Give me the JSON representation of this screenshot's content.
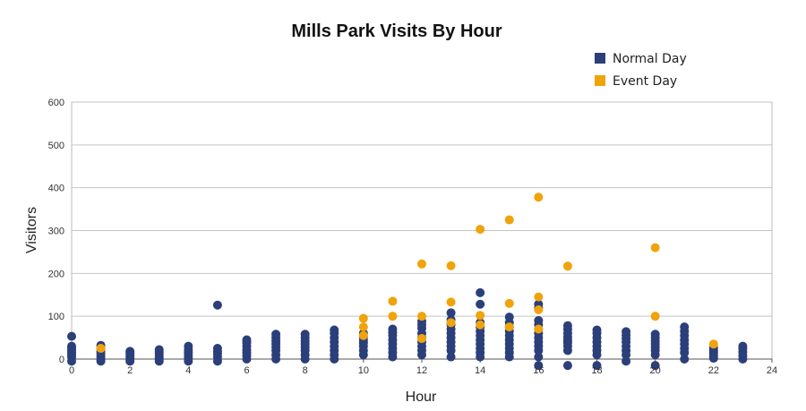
{
  "chart_data": {
    "type": "scatter",
    "title": "Mills Park Visits By Hour",
    "xlabel": "Hour",
    "ylabel": "Visitors",
    "xlim": [
      0,
      24
    ],
    "ylim": [
      0,
      600
    ],
    "xticks": [
      0,
      2,
      4,
      6,
      8,
      10,
      12,
      14,
      16,
      18,
      20,
      22,
      24
    ],
    "yticks": [
      0,
      100,
      200,
      300,
      400,
      500,
      600
    ],
    "grid": true,
    "legend_position": "top-right",
    "series": [
      {
        "name": "Normal Day",
        "color": "#2b3f7a",
        "x": [
          0,
          0,
          0,
          0,
          0,
          0,
          0,
          0,
          1,
          1,
          1,
          1,
          1,
          1,
          1,
          2,
          2,
          2,
          2,
          2,
          2,
          3,
          3,
          3,
          3,
          3,
          3,
          4,
          4,
          4,
          4,
          4,
          4,
          5,
          5,
          5,
          5,
          5,
          5,
          6,
          6,
          6,
          6,
          6,
          6,
          6,
          7,
          7,
          7,
          7,
          7,
          7,
          7,
          7,
          8,
          8,
          8,
          8,
          8,
          8,
          8,
          8,
          9,
          9,
          9,
          9,
          9,
          9,
          9,
          9,
          10,
          10,
          10,
          10,
          10,
          10,
          10,
          11,
          11,
          11,
          11,
          11,
          11,
          11,
          11,
          12,
          12,
          12,
          12,
          12,
          12,
          12,
          12,
          12,
          13,
          13,
          13,
          13,
          13,
          13,
          13,
          13,
          13,
          13,
          14,
          14,
          14,
          14,
          14,
          14,
          14,
          14,
          14,
          14,
          14,
          15,
          15,
          15,
          15,
          15,
          15,
          15,
          15,
          15,
          15,
          16,
          16,
          16,
          16,
          16,
          16,
          16,
          16,
          16,
          16,
          16,
          16,
          17,
          17,
          17,
          17,
          17,
          17,
          17,
          17,
          17,
          18,
          18,
          18,
          18,
          18,
          18,
          18,
          18,
          19,
          19,
          19,
          19,
          19,
          19,
          19,
          19,
          20,
          20,
          20,
          20,
          20,
          20,
          20,
          20,
          21,
          21,
          21,
          21,
          21,
          21,
          21,
          21,
          22,
          22,
          22,
          22,
          22,
          23,
          23,
          23,
          23,
          23
        ],
        "y": [
          53,
          30,
          25,
          20,
          15,
          10,
          5,
          -5,
          32,
          25,
          18,
          12,
          6,
          0,
          -5,
          18,
          14,
          10,
          5,
          0,
          -5,
          22,
          16,
          10,
          4,
          0,
          -5,
          30,
          22,
          15,
          8,
          2,
          -5,
          126,
          25,
          18,
          12,
          5,
          -5,
          45,
          38,
          30,
          22,
          15,
          8,
          0,
          58,
          50,
          42,
          35,
          28,
          20,
          10,
          0,
          58,
          50,
          42,
          35,
          28,
          20,
          10,
          0,
          68,
          60,
          50,
          40,
          30,
          20,
          10,
          0,
          60,
          52,
          45,
          38,
          30,
          20,
          10,
          70,
          62,
          55,
          45,
          35,
          25,
          15,
          5,
          88,
          80,
          72,
          60,
          50,
          40,
          30,
          20,
          10,
          108,
          92,
          80,
          70,
          60,
          50,
          40,
          30,
          20,
          5,
          155,
          128,
          85,
          75,
          65,
          55,
          45,
          35,
          25,
          15,
          5,
          98,
          85,
          75,
          65,
          55,
          45,
          35,
          25,
          15,
          5,
          128,
          120,
          90,
          80,
          70,
          60,
          50,
          40,
          30,
          20,
          5,
          -15,
          78,
          70,
          60,
          52,
          45,
          38,
          30,
          20,
          -15,
          68,
          60,
          50,
          40,
          30,
          20,
          10,
          -15,
          64,
          56,
          48,
          40,
          30,
          20,
          10,
          -5,
          58,
          50,
          42,
          35,
          28,
          20,
          10,
          -15,
          75,
          65,
          55,
          45,
          35,
          25,
          15,
          0,
          26,
          20,
          14,
          8,
          2,
          30,
          24,
          16,
          8,
          0
        ]
      },
      {
        "name": "Event Day",
        "color": "#f0a30a",
        "x": [
          1,
          10,
          10,
          10,
          11,
          11,
          12,
          12,
          12,
          13,
          13,
          13,
          14,
          14,
          14,
          15,
          15,
          15,
          16,
          16,
          16,
          16,
          17,
          20,
          20,
          22
        ],
        "y": [
          25,
          95,
          75,
          55,
          135,
          100,
          222,
          100,
          48,
          218,
          133,
          85,
          303,
          102,
          80,
          325,
          130,
          75,
          378,
          145,
          115,
          70,
          217,
          260,
          100,
          35
        ]
      }
    ]
  }
}
